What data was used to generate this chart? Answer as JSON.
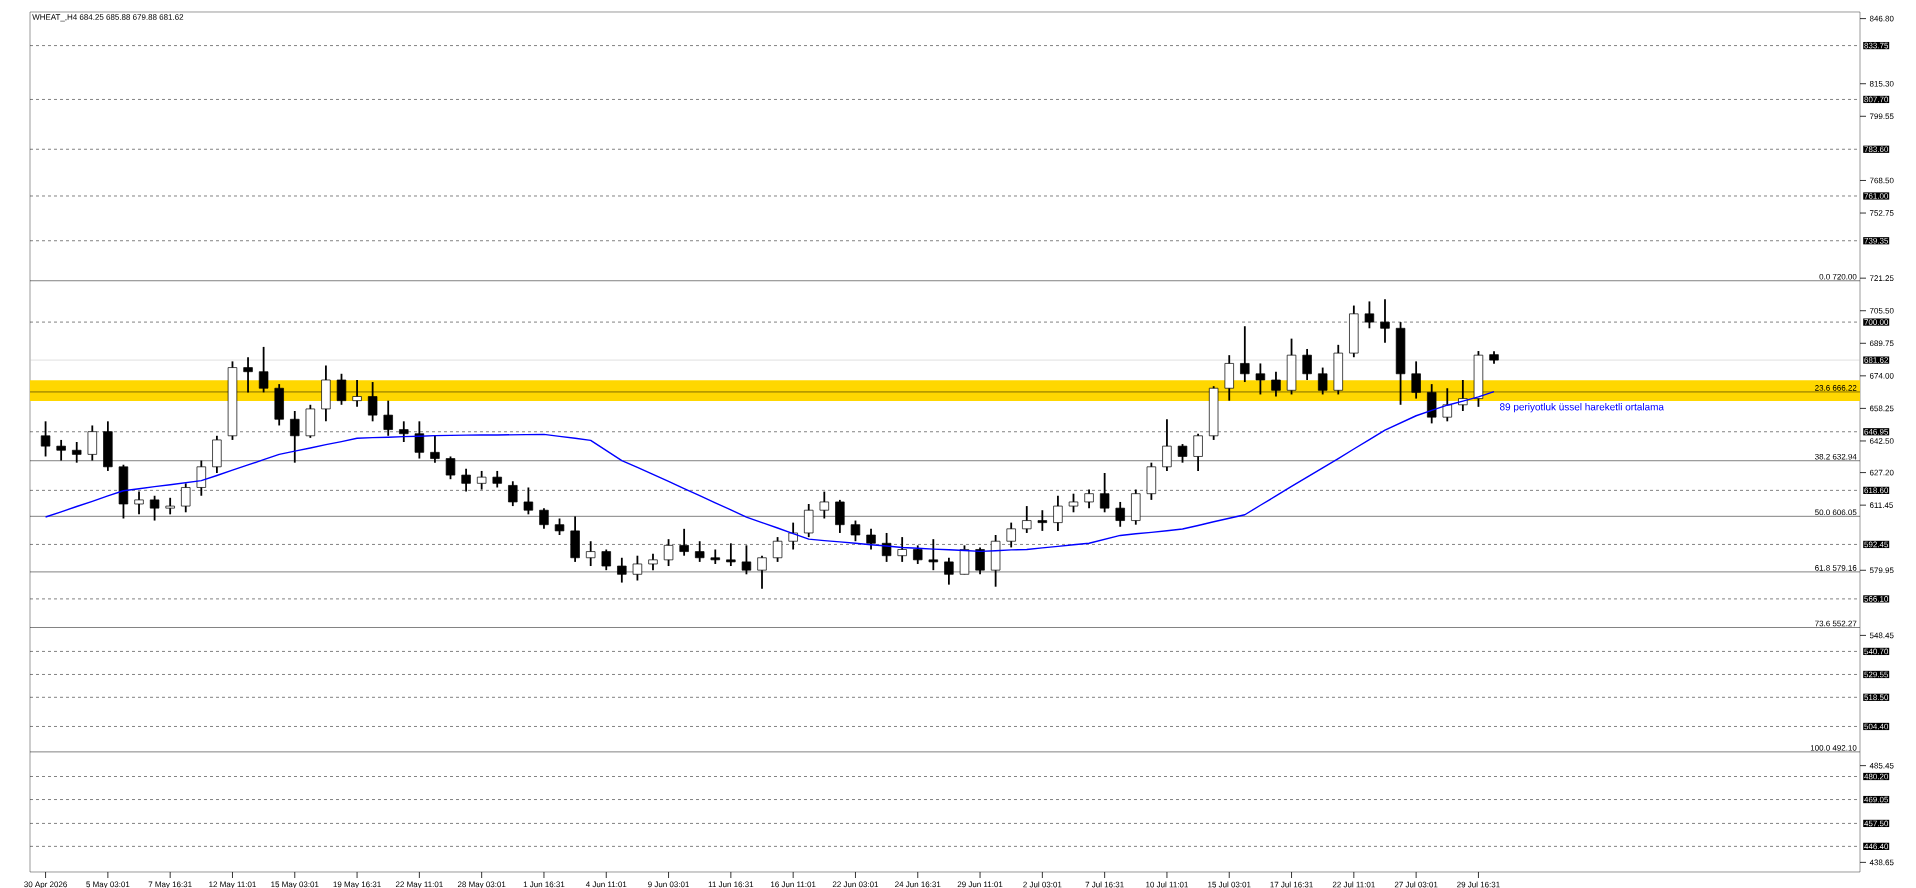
{
  "chart_data": {
    "type": "candlestick",
    "title": "WHEAT_,H4  684.25 685.88 679.88 681.62",
    "categories": [
      "30 Apr 2026",
      null,
      null,
      null,
      "5 May 03:01",
      null,
      null,
      null,
      "7 May 16:31",
      null,
      null,
      null,
      "12 May 11:01",
      null,
      null,
      null,
      "15 May 03:01",
      null,
      null,
      null,
      "19 May 16:31",
      null,
      null,
      null,
      "22 May 11:01",
      null,
      null,
      null,
      "28 May 03:01",
      null,
      null,
      null,
      "1 Jun 16:31",
      null,
      null,
      null,
      "4 Jun 11:01",
      null,
      null,
      null,
      "9 Jun 03:01",
      null,
      null,
      null,
      "11 Jun 16:31",
      null,
      null,
      null,
      "16 Jun 11:01",
      null,
      null,
      null,
      "22 Jun 03:01",
      null,
      null,
      null,
      "24 Jun 16:31",
      null,
      null,
      null,
      "29 Jun 11:01",
      null,
      null,
      null,
      "2 Jul 03:01",
      null,
      null,
      null,
      "7 Jul 16:31",
      null,
      null,
      null,
      "10 Jul 11:01",
      null,
      null,
      null,
      "15 Jul 03:01",
      null,
      null,
      null,
      "17 Jul 16:31",
      null,
      null,
      null,
      "22 Jul 11:01",
      null,
      null,
      null,
      "27 Jul 03:01",
      null,
      null,
      null,
      "29 Jul 16:31",
      null
    ],
    "ohlc": [
      [
        645,
        652,
        635,
        640
      ],
      [
        640,
        643,
        633,
        638
      ],
      [
        638,
        642,
        632,
        636
      ],
      [
        636,
        650,
        633,
        647
      ],
      [
        647,
        652,
        628,
        630
      ],
      [
        630,
        631,
        605,
        612
      ],
      [
        612,
        618,
        607,
        614
      ],
      [
        614,
        616,
        604,
        610
      ],
      [
        610,
        615,
        607,
        611
      ],
      [
        611,
        622,
        608,
        620
      ],
      [
        620,
        633,
        616,
        630
      ],
      [
        630,
        645,
        627,
        643
      ],
      [
        645,
        681,
        643,
        678
      ],
      [
        678,
        683,
        666,
        676
      ],
      [
        676,
        688,
        666,
        668
      ],
      [
        668,
        670,
        650,
        653
      ],
      [
        653,
        657,
        632,
        645
      ],
      [
        645,
        660,
        644,
        658
      ],
      [
        658,
        679,
        652,
        672
      ],
      [
        672,
        675,
        660,
        662
      ],
      [
        662,
        672,
        659,
        664
      ],
      [
        664,
        671,
        652,
        655
      ],
      [
        655,
        662,
        645,
        648
      ],
      [
        648,
        652,
        642,
        646
      ],
      [
        646,
        652,
        634,
        637
      ],
      [
        637,
        645,
        632,
        634
      ],
      [
        634,
        635,
        624,
        626
      ],
      [
        626,
        629,
        618,
        622
      ],
      [
        622,
        628,
        619,
        625
      ],
      [
        625,
        628,
        620,
        622
      ],
      [
        621,
        623,
        611,
        613
      ],
      [
        613,
        620,
        607,
        609
      ],
      [
        609,
        610,
        600,
        602
      ],
      [
        602,
        605,
        597,
        599
      ],
      [
        599,
        606,
        584,
        586
      ],
      [
        586,
        594,
        582,
        589
      ],
      [
        589,
        590,
        580,
        582
      ],
      [
        582,
        586,
        574,
        578
      ],
      [
        578,
        587,
        575,
        583
      ],
      [
        583,
        588,
        580,
        585
      ],
      [
        585,
        595,
        582,
        592
      ],
      [
        592,
        600,
        587,
        589
      ],
      [
        589,
        594,
        584,
        586
      ],
      [
        586,
        590,
        583,
        585
      ],
      [
        585,
        593,
        582,
        584
      ],
      [
        584,
        592,
        578,
        580
      ],
      [
        580,
        587,
        571,
        586
      ],
      [
        586,
        596,
        584,
        594
      ],
      [
        594,
        603,
        590,
        598
      ],
      [
        598,
        612,
        596,
        609
      ],
      [
        609,
        618,
        605,
        613
      ],
      [
        613,
        614,
        598,
        602
      ],
      [
        602,
        604,
        594,
        597
      ],
      [
        597,
        600,
        590,
        593
      ],
      [
        593,
        598,
        584,
        587
      ],
      [
        587,
        596,
        584,
        590
      ],
      [
        590,
        592,
        583,
        585
      ],
      [
        585,
        595,
        580,
        584
      ],
      [
        584,
        586,
        573,
        578
      ],
      [
        578,
        592,
        578,
        590
      ],
      [
        590,
        591,
        578,
        580
      ],
      [
        580,
        597,
        572,
        594
      ],
      [
        594,
        603,
        591,
        600
      ],
      [
        600,
        611,
        598,
        604
      ],
      [
        604,
        609,
        599,
        603
      ],
      [
        603,
        616,
        599,
        611
      ],
      [
        611,
        617,
        608,
        613
      ],
      [
        613,
        619,
        610,
        617
      ],
      [
        617,
        627,
        608,
        610
      ],
      [
        610,
        613,
        601,
        604
      ],
      [
        604,
        619,
        602,
        617
      ],
      [
        617,
        632,
        614,
        630
      ],
      [
        630,
        653,
        628,
        640
      ],
      [
        640,
        641,
        632,
        635
      ],
      [
        635,
        646,
        628,
        645
      ],
      [
        645,
        669,
        643,
        668
      ],
      [
        668,
        684,
        662,
        680
      ],
      [
        680,
        698,
        671,
        675
      ],
      [
        675,
        680,
        665,
        672
      ],
      [
        672,
        676,
        664,
        667
      ],
      [
        667,
        692,
        665,
        684
      ],
      [
        684,
        687,
        672,
        675
      ],
      [
        675,
        678,
        665,
        667
      ],
      [
        667,
        689,
        665,
        685
      ],
      [
        685,
        708,
        683,
        704
      ],
      [
        704,
        710,
        697,
        700
      ],
      [
        700,
        711,
        690,
        697
      ],
      [
        697,
        700,
        660,
        675
      ],
      [
        675,
        681,
        663,
        666
      ],
      [
        666,
        670,
        651,
        654
      ],
      [
        654,
        668,
        652,
        660
      ],
      [
        660,
        672,
        657,
        663
      ],
      [
        663,
        686,
        659,
        684
      ],
      [
        684.25,
        685.88,
        679.88,
        681.62
      ]
    ],
    "series": [
      {
        "type": "line",
        "name": "89 periyotluk üssel hareketli ortalama",
        "color": "#0000ff",
        "values": [
          605.7,
          608.2,
          610.8,
          613.3,
          615.9,
          618.4,
          619.4,
          620.4,
          621.3,
          622.3,
          623.3,
          625.8,
          628.4,
          630.9,
          633.5,
          636.0,
          637.6,
          639.1,
          640.7,
          642.2,
          643.8,
          644.1,
          644.3,
          644.6,
          644.8,
          645.1,
          645.2,
          645.3,
          645.4,
          645.4,
          645.5,
          645.6,
          645.7,
          644.7,
          643.8,
          642.8,
          637.9,
          633.0,
          629.7,
          626.3,
          623.0,
          619.5,
          616.1,
          612.6,
          609.2,
          605.7,
          603.0,
          600.4,
          597.7,
          595.0,
          594.3,
          593.7,
          593.0,
          592.3,
          591.7,
          591.0,
          590.6,
          590.2,
          589.9,
          589.5,
          589.1,
          589.4,
          589.8,
          590.0,
          590.8,
          591.5,
          592.3,
          593.0,
          594.9,
          596.8,
          597.6,
          598.3,
          599.1,
          599.9,
          601.6,
          603.4,
          605.1,
          606.8,
          611.4,
          615.9,
          620.5,
          625.0,
          629.5,
          634.0,
          638.6,
          643.1,
          647.7,
          651.2,
          654.7,
          657.3,
          659.8,
          661.8,
          663.8,
          666.4
        ]
      }
    ],
    "ylim": [
      434,
      850
    ],
    "yticks": [
      {
        "value": 846.8,
        "label": "846.80"
      },
      {
        "value": 815.3,
        "label": "815.30"
      },
      {
        "value": 799.55,
        "label": "799.55"
      },
      {
        "value": 768.5,
        "label": "768.50"
      },
      {
        "value": 752.75,
        "label": "752.75"
      },
      {
        "value": 721.25,
        "label": "721.25"
      },
      {
        "value": 705.5,
        "label": "705.50"
      },
      {
        "value": 689.75,
        "label": "689.75"
      },
      {
        "value": 674,
        "label": "674.00"
      },
      {
        "value": 658.25,
        "label": "658.25"
      },
      {
        "value": 642.5,
        "label": "642.50"
      },
      {
        "value": 627.2,
        "label": "627.20"
      },
      {
        "value": 611.45,
        "label": "611.45"
      },
      {
        "value": 579.95,
        "label": "579.95"
      },
      {
        "value": 548.45,
        "label": "548.45"
      },
      {
        "value": 485.45,
        "label": "485.45"
      },
      {
        "value": 438.65,
        "label": "438.65"
      }
    ],
    "ref_lines": [
      {
        "axis": "y",
        "value": 833.75,
        "label": "833.75",
        "color": "#000000",
        "line_style": "dashed"
      },
      {
        "axis": "y",
        "value": 807.7,
        "label": "807.70",
        "color": "#000000",
        "line_style": "dashed"
      },
      {
        "axis": "y",
        "value": 783.6,
        "label": "783.60",
        "color": "#000000",
        "line_style": "dashed"
      },
      {
        "axis": "y",
        "value": 761.0,
        "label": "761.00",
        "color": "#000000",
        "line_style": "dashed"
      },
      {
        "axis": "y",
        "value": 739.35,
        "label": "739.35",
        "color": "#000000",
        "line_style": "dashed"
      },
      {
        "axis": "y",
        "value": 720.0,
        "label": "0.0 720.00",
        "color": "#000000",
        "line_style": "solid"
      },
      {
        "axis": "y",
        "value": 700.0,
        "label": "700.00",
        "color": "#000000",
        "line_style": "dashed"
      },
      {
        "axis": "y",
        "value": 681.62,
        "label": "681.62",
        "color": "#c0c0c0",
        "line_style": "solid"
      },
      {
        "axis": "y",
        "value": 666.22,
        "label": "23.6 666.22",
        "color": "#000000",
        "line_style": "solid"
      },
      {
        "axis": "y",
        "value": 646.95,
        "label": "646.95",
        "color": "#000000",
        "line_style": "dashed"
      },
      {
        "axis": "y",
        "value": 632.94,
        "label": "38.2 632.94",
        "color": "#000000",
        "line_style": "solid"
      },
      {
        "axis": "y",
        "value": 618.6,
        "label": "618.60",
        "color": "#000000",
        "line_style": "dashed"
      },
      {
        "axis": "y",
        "value": 606.05,
        "label": "50.0 606.05",
        "color": "#000000",
        "line_style": "solid"
      },
      {
        "axis": "y",
        "value": 592.45,
        "label": "592.45",
        "color": "#000000",
        "line_style": "dashed"
      },
      {
        "axis": "y",
        "value": 579.16,
        "label": "61.8 579.16",
        "color": "#000000",
        "line_style": "solid"
      },
      {
        "axis": "y",
        "value": 566.1,
        "label": "566.10",
        "color": "#000000",
        "line_style": "dashed"
      },
      {
        "axis": "y",
        "value": 552.27,
        "label": "73.6 552.27",
        "color": "#000000",
        "line_style": "solid"
      },
      {
        "axis": "y",
        "value": 540.7,
        "label": "540.70",
        "color": "#000000",
        "line_style": "dashed"
      },
      {
        "axis": "y",
        "value": 529.55,
        "label": "529.55",
        "color": "#000000",
        "line_style": "dashed"
      },
      {
        "axis": "y",
        "value": 518.5,
        "label": "518.50",
        "color": "#000000",
        "line_style": "dashed"
      },
      {
        "axis": "y",
        "value": 504.4,
        "label": "504.40",
        "color": "#000000",
        "line_style": "dashed"
      },
      {
        "axis": "y",
        "value": 492.1,
        "label": "100.0 492.10",
        "color": "#000000",
        "line_style": "solid"
      },
      {
        "axis": "y",
        "value": 480.2,
        "label": "480.20",
        "color": "#000000",
        "line_style": "dashed"
      },
      {
        "axis": "y",
        "value": 469.05,
        "label": "469.05",
        "color": "#000000",
        "line_style": "dashed"
      },
      {
        "axis": "y",
        "value": 457.5,
        "label": "457.50",
        "color": "#000000",
        "line_style": "dashed"
      },
      {
        "axis": "y",
        "value": 446.4,
        "label": "446.40",
        "color": "#000000",
        "line_style": "dashed"
      }
    ],
    "bands": [
      {
        "axis": "y",
        "from": 661.8,
        "to": 671.9,
        "color": "#ffd700"
      }
    ]
  }
}
